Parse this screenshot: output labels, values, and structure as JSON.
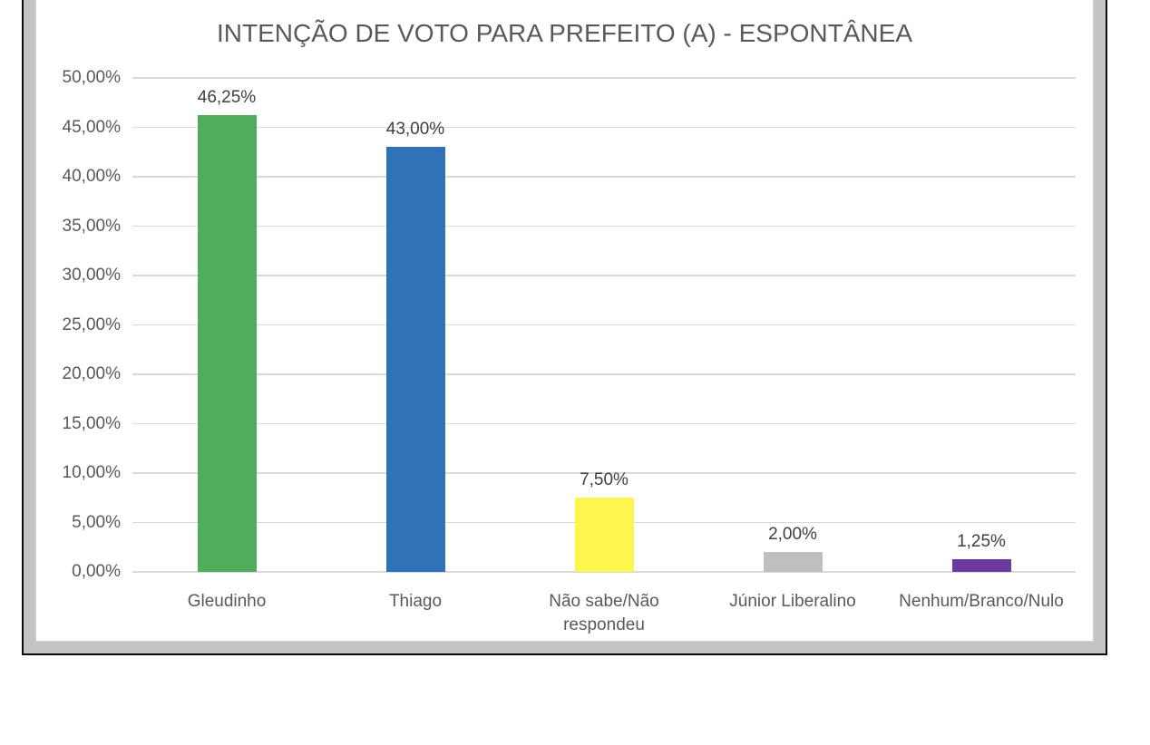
{
  "chart_data": {
    "type": "bar",
    "title": "INTENÇÃO DE VOTO PARA PREFEITO (A) - ESPONTÂNEA",
    "categories": [
      "Gleudinho",
      "Thiago",
      "Não sabe/Não respondeu",
      "Júnior Liberalino",
      "Nenhum/Branco/Nulo"
    ],
    "values": [
      46.25,
      43.0,
      7.5,
      2.0,
      1.25
    ],
    "value_labels": [
      "46,25%",
      "43,00%",
      "7,50%",
      "2,00%",
      "1,25%"
    ],
    "bar_colors": [
      "#4fad5b",
      "#2f72b8",
      "#fdf64d",
      "#bfbfbf",
      "#6f3a9d"
    ],
    "xlabel": "",
    "ylabel": "",
    "y_axis": {
      "min": 0,
      "max": 50,
      "step": 5,
      "tick_labels": [
        "0,00%",
        "5,00%",
        "10,00%",
        "15,00%",
        "20,00%",
        "25,00%",
        "30,00%",
        "35,00%",
        "40,00%",
        "45,00%",
        "50,00%"
      ]
    },
    "grid": true,
    "legend": false
  },
  "style": {
    "title_color": "#595959",
    "axis_text_color": "#595959",
    "value_label_color": "#3f3f3f",
    "gridline_color": "#d9d9d9",
    "frame_fill_color": "#c4c4c4",
    "frame_border_color": "#0a0a0a"
  }
}
